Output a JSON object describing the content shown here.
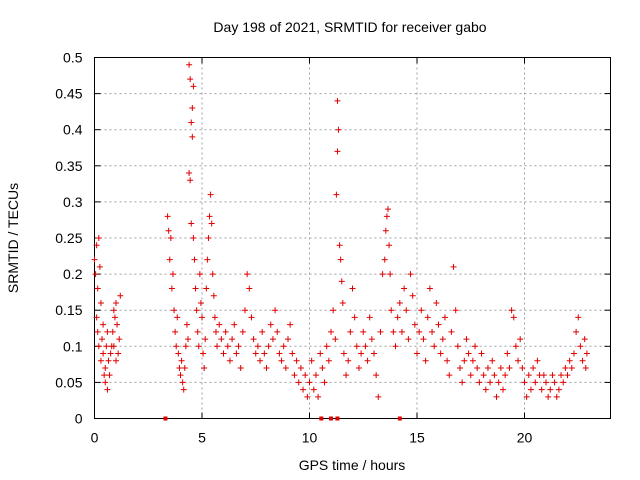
{
  "chart_data": {
    "type": "scatter",
    "title": "Day 198 of 2021, SRMTID for receiver gabo",
    "xlabel": "GPS time / hours",
    "ylabel": "SRMTID / TECUs",
    "xlim": [
      0,
      24
    ],
    "ylim": [
      0,
      0.5
    ],
    "x_ticks": [
      0,
      5,
      10,
      15,
      20
    ],
    "x_tick_labels": [
      "0",
      "5",
      "10",
      "15",
      "20"
    ],
    "y_ticks": [
      0,
      0.05,
      0.1,
      0.15,
      0.2,
      0.25,
      0.3,
      0.35,
      0.4,
      0.45,
      0.5
    ],
    "y_tick_labels": [
      "0",
      "0.05",
      "0.1",
      "0.15",
      "0.2",
      "0.25",
      "0.3",
      "0.35",
      "0.4",
      "0.45",
      "0.5"
    ],
    "grid": true,
    "marker": "+",
    "color": "#e00000",
    "series": [
      {
        "name": "SRMTID",
        "points": [
          [
            0.0,
            0.22
          ],
          [
            0.05,
            0.2
          ],
          [
            0.1,
            0.24
          ],
          [
            0.15,
            0.18
          ],
          [
            0.2,
            0.25
          ],
          [
            0.25,
            0.21
          ],
          [
            0.1,
            0.14
          ],
          [
            0.15,
            0.12
          ],
          [
            0.2,
            0.1
          ],
          [
            0.3,
            0.08
          ],
          [
            0.35,
            0.11
          ],
          [
            0.4,
            0.09
          ],
          [
            0.45,
            0.06
          ],
          [
            0.5,
            0.07
          ],
          [
            0.55,
            0.1
          ],
          [
            0.6,
            0.12
          ],
          [
            0.65,
            0.08
          ],
          [
            0.7,
            0.06
          ],
          [
            0.75,
            0.09
          ],
          [
            0.3,
            0.16
          ],
          [
            0.4,
            0.13
          ],
          [
            0.5,
            0.05
          ],
          [
            0.6,
            0.04
          ],
          [
            0.8,
            0.1
          ],
          [
            0.85,
            0.12
          ],
          [
            0.9,
            0.15
          ],
          [
            0.95,
            0.14
          ],
          [
            1.0,
            0.16
          ],
          [
            1.05,
            0.13
          ],
          [
            1.1,
            0.09
          ],
          [
            1.15,
            0.11
          ],
          [
            1.2,
            0.17
          ],
          [
            1.0,
            0.08
          ],
          [
            0.9,
            0.1
          ],
          [
            3.4,
            0.28
          ],
          [
            3.45,
            0.26
          ],
          [
            3.5,
            0.22
          ],
          [
            3.55,
            0.25
          ],
          [
            3.6,
            0.18
          ],
          [
            3.65,
            0.2
          ],
          [
            3.7,
            0.15
          ],
          [
            3.75,
            0.12
          ],
          [
            3.8,
            0.1
          ],
          [
            3.85,
            0.14
          ],
          [
            3.9,
            0.09
          ],
          [
            3.95,
            0.07
          ],
          [
            4.0,
            0.06
          ],
          [
            4.05,
            0.08
          ],
          [
            4.1,
            0.05
          ],
          [
            4.15,
            0.04
          ],
          [
            4.2,
            0.07
          ],
          [
            4.25,
            0.1
          ],
          [
            4.3,
            0.13
          ],
          [
            4.35,
            0.11
          ],
          [
            4.4,
            0.34
          ],
          [
            4.45,
            0.33
          ],
          [
            4.5,
            0.41
          ],
          [
            4.55,
            0.39
          ],
          [
            4.6,
            0.46
          ],
          [
            4.4,
            0.49
          ],
          [
            4.45,
            0.47
          ],
          [
            4.55,
            0.43
          ],
          [
            4.5,
            0.27
          ],
          [
            4.6,
            0.25
          ],
          [
            4.65,
            0.22
          ],
          [
            4.7,
            0.18
          ],
          [
            4.75,
            0.15
          ],
          [
            4.8,
            0.12
          ],
          [
            4.85,
            0.1
          ],
          [
            4.9,
            0.2
          ],
          [
            4.95,
            0.16
          ],
          [
            5.0,
            0.14
          ],
          [
            5.05,
            0.09
          ],
          [
            5.1,
            0.07
          ],
          [
            5.15,
            0.11
          ],
          [
            5.2,
            0.18
          ],
          [
            5.25,
            0.22
          ],
          [
            5.3,
            0.25
          ],
          [
            5.35,
            0.28
          ],
          [
            5.4,
            0.31
          ],
          [
            5.45,
            0.27
          ],
          [
            5.5,
            0.2
          ],
          [
            5.55,
            0.17
          ],
          [
            5.6,
            0.14
          ],
          [
            5.65,
            0.12
          ],
          [
            5.7,
            0.1
          ],
          [
            5.8,
            0.13
          ],
          [
            5.9,
            0.11
          ],
          [
            6.0,
            0.09
          ],
          [
            6.1,
            0.12
          ],
          [
            6.2,
            0.1
          ],
          [
            6.3,
            0.08
          ],
          [
            6.4,
            0.11
          ],
          [
            6.5,
            0.13
          ],
          [
            6.6,
            0.09
          ],
          [
            6.7,
            0.1
          ],
          [
            6.8,
            0.07
          ],
          [
            6.9,
            0.12
          ],
          [
            7.0,
            0.15
          ],
          [
            7.1,
            0.2
          ],
          [
            7.2,
            0.18
          ],
          [
            7.3,
            0.14
          ],
          [
            7.4,
            0.11
          ],
          [
            7.5,
            0.09
          ],
          [
            7.6,
            0.1
          ],
          [
            7.7,
            0.08
          ],
          [
            7.8,
            0.12
          ],
          [
            7.9,
            0.09
          ],
          [
            8.0,
            0.07
          ],
          [
            8.1,
            0.1
          ],
          [
            8.2,
            0.13
          ],
          [
            8.3,
            0.11
          ],
          [
            8.4,
            0.15
          ],
          [
            8.5,
            0.12
          ],
          [
            8.6,
            0.09
          ],
          [
            8.7,
            0.08
          ],
          [
            8.8,
            0.1
          ],
          [
            8.9,
            0.07
          ],
          [
            9.0,
            0.11
          ],
          [
            9.1,
            0.13
          ],
          [
            9.2,
            0.09
          ],
          [
            9.3,
            0.06
          ],
          [
            9.4,
            0.08
          ],
          [
            9.5,
            0.05
          ],
          [
            9.6,
            0.07
          ],
          [
            9.7,
            0.04
          ],
          [
            9.8,
            0.06
          ],
          [
            9.9,
            0.03
          ],
          [
            10.0,
            0.05
          ],
          [
            10.1,
            0.08
          ],
          [
            10.2,
            0.04
          ],
          [
            10.3,
            0.06
          ],
          [
            10.4,
            0.03
          ],
          [
            10.5,
            0.09
          ],
          [
            10.6,
            0.07
          ],
          [
            10.7,
            0.05
          ],
          [
            10.8,
            0.1
          ],
          [
            10.9,
            0.08
          ],
          [
            11.0,
            0.12
          ],
          [
            11.1,
            0.15
          ],
          [
            11.2,
            0.11
          ],
          [
            11.3,
            0.44
          ],
          [
            11.35,
            0.4
          ],
          [
            11.3,
            0.37
          ],
          [
            11.25,
            0.31
          ],
          [
            11.4,
            0.24
          ],
          [
            11.45,
            0.22
          ],
          [
            11.5,
            0.19
          ],
          [
            11.55,
            0.16
          ],
          [
            11.6,
            0.09
          ],
          [
            11.7,
            0.06
          ],
          [
            11.8,
            0.08
          ],
          [
            11.9,
            0.12
          ],
          [
            12.0,
            0.18
          ],
          [
            12.1,
            0.14
          ],
          [
            12.2,
            0.1
          ],
          [
            12.3,
            0.07
          ],
          [
            12.4,
            0.09
          ],
          [
            12.5,
            0.12
          ],
          [
            12.6,
            0.1
          ],
          [
            12.7,
            0.08
          ],
          [
            12.8,
            0.14
          ],
          [
            12.9,
            0.11
          ],
          [
            13.0,
            0.09
          ],
          [
            13.1,
            0.06
          ],
          [
            13.2,
            0.03
          ],
          [
            13.3,
            0.12
          ],
          [
            13.4,
            0.2
          ],
          [
            13.5,
            0.22
          ],
          [
            13.55,
            0.26
          ],
          [
            13.6,
            0.28
          ],
          [
            13.65,
            0.29
          ],
          [
            13.7,
            0.24
          ],
          [
            13.75,
            0.2
          ],
          [
            13.8,
            0.15
          ],
          [
            13.9,
            0.12
          ],
          [
            14.0,
            0.1
          ],
          [
            14.1,
            0.14
          ],
          [
            14.2,
            0.16
          ],
          [
            14.3,
            0.12
          ],
          [
            14.4,
            0.18
          ],
          [
            14.5,
            0.15
          ],
          [
            14.6,
            0.11
          ],
          [
            14.7,
            0.2
          ],
          [
            14.8,
            0.17
          ],
          [
            14.9,
            0.13
          ],
          [
            15.0,
            0.09
          ],
          [
            15.1,
            0.12
          ],
          [
            15.2,
            0.15
          ],
          [
            15.3,
            0.11
          ],
          [
            15.4,
            0.08
          ],
          [
            15.5,
            0.14
          ],
          [
            15.6,
            0.18
          ],
          [
            15.7,
            0.12
          ],
          [
            15.8,
            0.1
          ],
          [
            15.9,
            0.16
          ],
          [
            16.0,
            0.13
          ],
          [
            16.1,
            0.09
          ],
          [
            16.2,
            0.11
          ],
          [
            16.3,
            0.14
          ],
          [
            16.4,
            0.08
          ],
          [
            16.5,
            0.06
          ],
          [
            16.6,
            0.12
          ],
          [
            16.7,
            0.21
          ],
          [
            16.8,
            0.15
          ],
          [
            16.9,
            0.1
          ],
          [
            17.0,
            0.07
          ],
          [
            17.1,
            0.05
          ],
          [
            17.2,
            0.08
          ],
          [
            17.3,
            0.11
          ],
          [
            17.4,
            0.09
          ],
          [
            17.5,
            0.06
          ],
          [
            17.6,
            0.08
          ],
          [
            17.7,
            0.1
          ],
          [
            17.8,
            0.07
          ],
          [
            17.9,
            0.05
          ],
          [
            18.0,
            0.09
          ],
          [
            18.1,
            0.06
          ],
          [
            18.2,
            0.04
          ],
          [
            18.3,
            0.07
          ],
          [
            18.4,
            0.05
          ],
          [
            18.5,
            0.08
          ],
          [
            18.6,
            0.06
          ],
          [
            18.7,
            0.03
          ],
          [
            18.8,
            0.05
          ],
          [
            18.9,
            0.07
          ],
          [
            19.0,
            0.04
          ],
          [
            19.1,
            0.06
          ],
          [
            19.2,
            0.09
          ],
          [
            19.3,
            0.07
          ],
          [
            19.4,
            0.15
          ],
          [
            19.5,
            0.14
          ],
          [
            19.6,
            0.1
          ],
          [
            19.7,
            0.08
          ],
          [
            19.8,
            0.11
          ],
          [
            19.9,
            0.07
          ],
          [
            20.0,
            0.05
          ],
          [
            20.1,
            0.03
          ],
          [
            20.2,
            0.06
          ],
          [
            20.3,
            0.04
          ],
          [
            20.4,
            0.07
          ],
          [
            20.5,
            0.05
          ],
          [
            20.6,
            0.08
          ],
          [
            20.7,
            0.06
          ],
          [
            20.8,
            0.04
          ],
          [
            20.9,
            0.06
          ],
          [
            21.0,
            0.05
          ],
          [
            21.1,
            0.03
          ],
          [
            21.2,
            0.04
          ],
          [
            21.3,
            0.06
          ],
          [
            21.4,
            0.05
          ],
          [
            21.5,
            0.03
          ],
          [
            21.6,
            0.04
          ],
          [
            21.7,
            0.06
          ],
          [
            21.8,
            0.05
          ],
          [
            21.9,
            0.07
          ],
          [
            22.0,
            0.06
          ],
          [
            22.1,
            0.08
          ],
          [
            22.2,
            0.07
          ],
          [
            22.3,
            0.09
          ],
          [
            22.4,
            0.12
          ],
          [
            22.5,
            0.14
          ],
          [
            22.6,
            0.1
          ],
          [
            22.7,
            0.08
          ],
          [
            22.8,
            0.11
          ],
          [
            22.85,
            0.07
          ],
          [
            22.9,
            0.09
          ]
        ]
      }
    ],
    "zero_markers": [
      3.3,
      10.55,
      11.0,
      11.3,
      14.2
    ]
  }
}
